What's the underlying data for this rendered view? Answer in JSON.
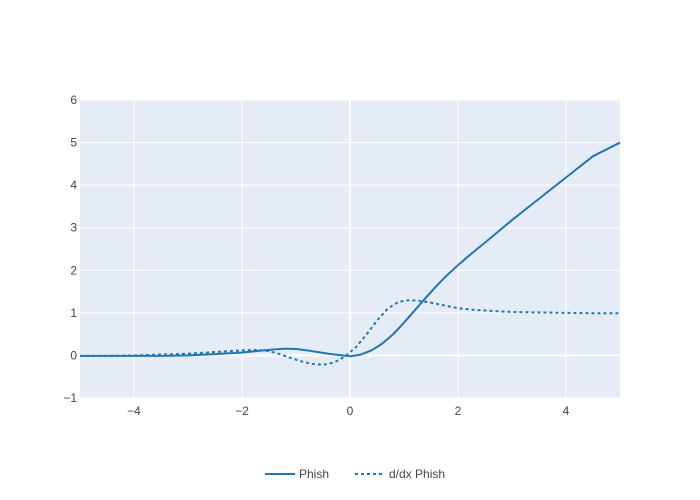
{
  "chart_data": {
    "type": "line",
    "title": "",
    "xlabel": "",
    "ylabel": "",
    "xlim": [
      -5,
      5
    ],
    "ylim": [
      -1,
      6
    ],
    "x_ticks": [
      -4,
      -2,
      0,
      2,
      4
    ],
    "x_tick_labels": [
      "−4",
      "−2",
      "0",
      "2",
      "4"
    ],
    "y_ticks": [
      -1,
      0,
      1,
      2,
      3,
      4,
      5,
      6
    ],
    "y_tick_labels": [
      "−1",
      "0",
      "1",
      "2",
      "3",
      "4",
      "5",
      "6"
    ],
    "grid": true,
    "legend_position": "bottom-center",
    "legend_orientation": "horizontal",
    "colors": {
      "plot_background": "#e5ecf6",
      "grid": "#ffffff",
      "series": "#1f77b4",
      "text": "#444444"
    },
    "series": [
      {
        "name": "Phish",
        "style": "solid",
        "x": [
          -5,
          -4.5,
          -4,
          -3.5,
          -3,
          -2.5,
          -2,
          -1.5,
          -1.2,
          -1,
          -0.8,
          -0.6,
          -0.4,
          -0.2,
          0,
          0.2,
          0.4,
          0.6,
          0.8,
          1,
          1.2,
          1.4,
          1.6,
          1.8,
          2,
          2.2,
          2.5,
          3,
          3.5,
          4,
          4.5,
          5
        ],
        "y": [
          -0.01,
          -0.01,
          -0.01,
          -0.01,
          0,
          0.03,
          0.07,
          0.13,
          0.16,
          0.15,
          0.12,
          0.08,
          0.04,
          0.01,
          -0.02,
          0.02,
          0.12,
          0.28,
          0.5,
          0.77,
          1.06,
          1.35,
          1.63,
          1.89,
          2.12,
          2.34,
          2.65,
          3.18,
          3.68,
          4.18,
          4.68,
          5
        ]
      },
      {
        "name": "d/dx Phish",
        "style": "dotted",
        "x": [
          -5,
          -4.5,
          -4,
          -3.5,
          -3,
          -2.5,
          -2,
          -1.7,
          -1.5,
          -1.3,
          -1.1,
          -0.9,
          -0.7,
          -0.5,
          -0.3,
          -0.1,
          0.1,
          0.3,
          0.5,
          0.7,
          0.9,
          1.1,
          1.3,
          1.5,
          1.8,
          2,
          2.3,
          2.7,
          3,
          3.5,
          4,
          4.5,
          5
        ],
        "y": [
          -0.01,
          -0.01,
          0,
          0.02,
          0.04,
          0.08,
          0.12,
          0.13,
          0.1,
          0.03,
          -0.06,
          -0.14,
          -0.2,
          -0.22,
          -0.17,
          -0.03,
          0.18,
          0.48,
          0.82,
          1.1,
          1.26,
          1.3,
          1.28,
          1.24,
          1.16,
          1.11,
          1.07,
          1.04,
          1.02,
          1.01,
          1,
          0.99,
          0.99
        ]
      }
    ]
  }
}
